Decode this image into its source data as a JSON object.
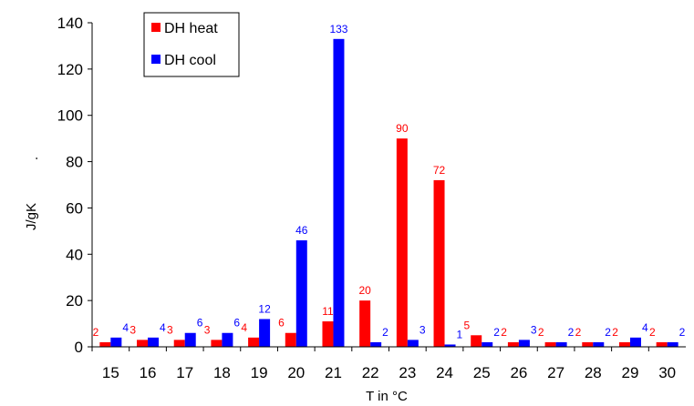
{
  "chart_data": {
    "type": "bar",
    "categories": [
      "15",
      "16",
      "17",
      "18",
      "19",
      "20",
      "21",
      "22",
      "23",
      "24",
      "25",
      "26",
      "27",
      "28",
      "29",
      "30"
    ],
    "series": [
      {
        "name": "DH heat",
        "color": "#ff0000",
        "values": [
          2,
          3,
          3,
          3,
          4,
          6,
          11,
          20,
          90,
          72,
          5,
          2,
          2,
          2,
          2,
          2
        ],
        "labels": [
          "2",
          "3",
          "3",
          "3",
          "4",
          "6",
          "11",
          "20",
          "90",
          "72",
          "5",
          "2",
          "2",
          "2",
          "2",
          "2"
        ]
      },
      {
        "name": "DH cool",
        "color": "#0000ff",
        "values": [
          4,
          4,
          6,
          6,
          12,
          46,
          133,
          2,
          3,
          1,
          2,
          3,
          2,
          2,
          4,
          2
        ],
        "labels": [
          "4",
          "4",
          "6",
          "6",
          "12",
          "46",
          "133",
          "2",
          "3",
          "1",
          "2",
          "3",
          "2",
          "2",
          "4",
          "2"
        ]
      }
    ],
    "xlabel": "T in °C",
    "ylabel": "J/gK",
    "ylabel_suffix": ".",
    "ylim": [
      0,
      140
    ],
    "yticks": [
      "0",
      "20",
      "40",
      "60",
      "80",
      "100",
      "120",
      "140"
    ],
    "grid": false,
    "legend_position": "top-left"
  }
}
